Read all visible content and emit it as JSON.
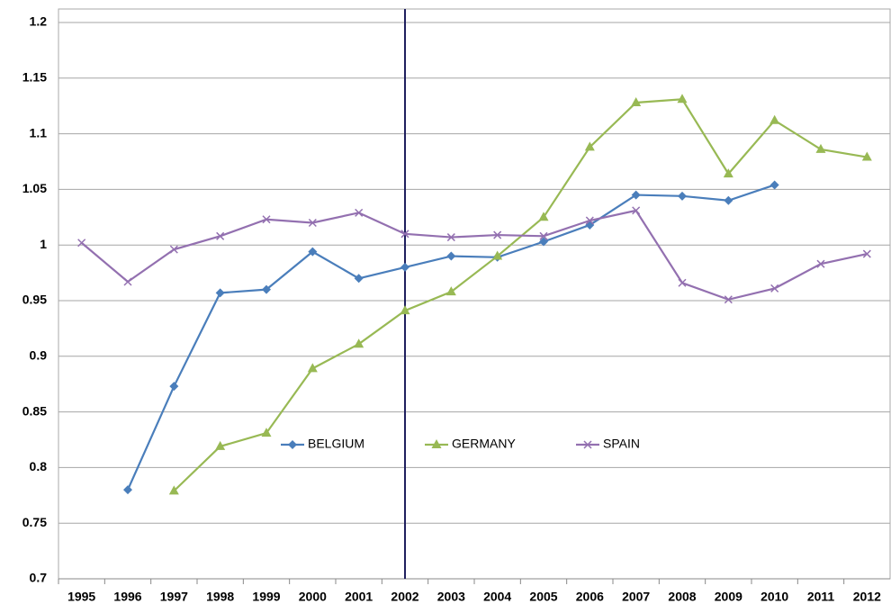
{
  "chart_data": {
    "type": "line",
    "categories": [
      "1995",
      "1996",
      "1997",
      "1998",
      "1999",
      "2000",
      "2001",
      "2002",
      "2003",
      "2004",
      "2005",
      "2006",
      "2007",
      "2008",
      "2009",
      "2010",
      "2011",
      "2012"
    ],
    "series": [
      {
        "name": "BELGIUM",
        "color": "#4a7ebb",
        "marker": "diamond",
        "values": [
          null,
          0.78,
          0.873,
          0.957,
          0.96,
          0.994,
          0.97,
          0.98,
          0.99,
          0.989,
          1.003,
          1.018,
          1.045,
          1.044,
          1.04,
          1.054,
          null,
          null
        ]
      },
      {
        "name": "GERMANY",
        "color": "#98b954",
        "marker": "triangle",
        "values": [
          null,
          null,
          0.779,
          0.819,
          0.831,
          0.889,
          0.911,
          0.941,
          0.958,
          0.99,
          1.025,
          1.088,
          1.128,
          1.131,
          1.064,
          1.112,
          1.086,
          1.079
        ]
      },
      {
        "name": "SPAIN",
        "color": "#9370b0",
        "marker": "x",
        "values": [
          1.002,
          0.967,
          0.996,
          1.008,
          1.023,
          1.02,
          1.029,
          1.01,
          1.007,
          1.009,
          1.008,
          1.022,
          1.031,
          0.966,
          0.951,
          0.961,
          0.983,
          0.992
        ]
      }
    ],
    "ylim": [
      0.7,
      1.2
    ],
    "yticks": [
      0.7,
      0.75,
      0.8,
      0.85,
      0.9,
      0.95,
      1,
      1.05,
      1.1,
      1.15,
      1.2
    ],
    "grid": true,
    "vertical_line_at": "2002"
  }
}
